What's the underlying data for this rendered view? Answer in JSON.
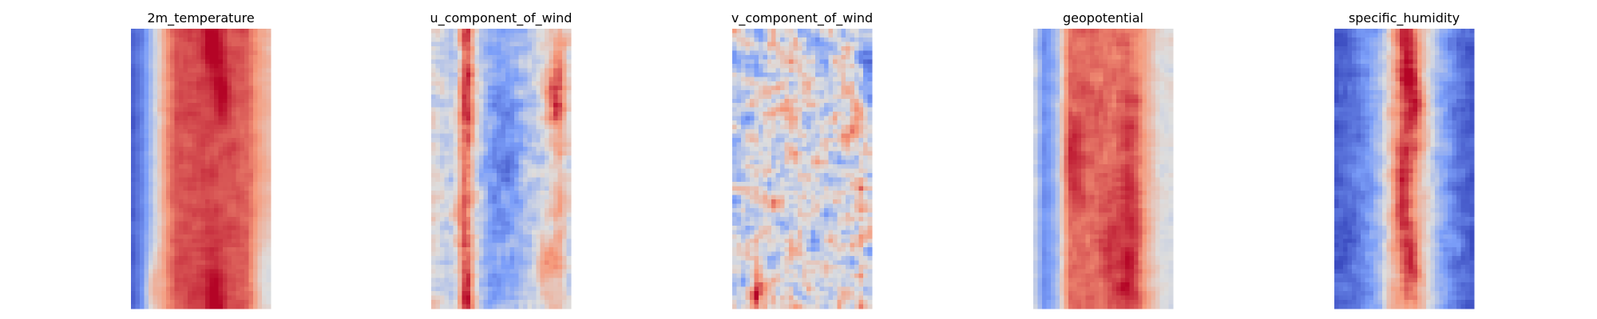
{
  "figure": {
    "background": "#ffffff",
    "colormap": "coolwarm"
  },
  "chart_data": [
    {
      "type": "heatmap",
      "title": "2m_temperature",
      "axes": "off",
      "profile": [
        -0.92,
        -0.65,
        -0.12,
        0.48,
        0.74,
        0.76,
        0.78,
        0.77,
        0.75,
        0.73,
        0.69,
        0.45,
        0.26
      ],
      "noise": 0.1,
      "blobs": [
        {
          "u": 0.58,
          "v": 0.02,
          "r": 0.05,
          "amp": 0.3
        },
        {
          "u": 0.65,
          "v": 0.22,
          "r": 0.04,
          "amp": 0.25
        },
        {
          "u": 0.6,
          "v": 0.98,
          "r": 0.05,
          "amp": 0.3
        },
        {
          "u": 0.15,
          "v": 0.93,
          "r": 0.04,
          "amp": 0.5
        },
        {
          "u": 0.96,
          "v": 0.88,
          "r": 0.05,
          "amp": -0.4
        }
      ]
    },
    {
      "type": "heatmap",
      "title": "u_component_of_wind",
      "axes": "off",
      "profile": [
        0.0,
        -0.12,
        -0.28,
        0.35,
        -0.2,
        -0.38,
        -0.42,
        -0.36,
        -0.22,
        -0.18,
        -0.05,
        0.3,
        -0.05
      ],
      "noise": 0.3,
      "blobs": [
        {
          "u": 0.25,
          "v": 0.3,
          "r": 0.06,
          "amp": 0.55
        },
        {
          "u": 0.22,
          "v": 0.65,
          "r": 0.07,
          "amp": 0.45
        },
        {
          "u": 0.26,
          "v": 0.03,
          "r": 0.05,
          "amp": 0.6
        },
        {
          "u": 0.25,
          "v": 0.97,
          "r": 0.05,
          "amp": 0.7
        },
        {
          "u": 0.88,
          "v": 0.22,
          "r": 0.06,
          "amp": 0.55
        },
        {
          "u": 0.82,
          "v": 0.85,
          "r": 0.05,
          "amp": 0.5
        },
        {
          "u": 0.55,
          "v": 0.42,
          "r": 0.08,
          "amp": -0.35
        }
      ]
    },
    {
      "type": "heatmap",
      "title": "v_component_of_wind",
      "axes": "off",
      "profile": [
        -0.25,
        -0.12,
        -0.05,
        -0.02,
        0.0,
        -0.02,
        0.0,
        -0.05,
        -0.02,
        0.0,
        0.05,
        0.1,
        -0.25
      ],
      "noise": 0.62,
      "blobs": [
        {
          "u": 0.18,
          "v": 0.97,
          "r": 0.04,
          "amp": 0.8
        },
        {
          "u": 0.95,
          "v": 0.1,
          "r": 0.05,
          "amp": -0.6
        },
        {
          "u": 0.97,
          "v": 0.7,
          "r": 0.05,
          "amp": 0.4
        }
      ]
    },
    {
      "type": "heatmap",
      "title": "geopotential",
      "axes": "off",
      "profile": [
        0.0,
        -0.62,
        -0.3,
        0.62,
        0.66,
        0.66,
        0.65,
        0.64,
        0.63,
        0.55,
        0.3,
        0.02,
        0.0
      ],
      "noise": 0.14,
      "blobs": [
        {
          "u": 0.28,
          "v": 0.45,
          "r": 0.06,
          "amp": 0.3
        },
        {
          "u": 0.7,
          "v": 0.3,
          "r": 0.05,
          "amp": 0.2
        },
        {
          "u": 0.7,
          "v": 0.58,
          "r": 0.05,
          "amp": 0.25
        },
        {
          "u": 0.68,
          "v": 0.88,
          "r": 0.07,
          "amp": 0.3
        },
        {
          "u": 0.55,
          "v": 0.75,
          "r": 0.06,
          "amp": 0.15
        }
      ]
    },
    {
      "type": "heatmap",
      "title": "specific_humidity",
      "axes": "off",
      "profile": [
        -0.92,
        -0.85,
        -0.7,
        -0.52,
        -0.25,
        0.28,
        0.62,
        0.42,
        0.05,
        -0.35,
        -0.58,
        -0.8,
        -0.92
      ],
      "noise": 0.22,
      "blobs": [
        {
          "u": 0.52,
          "v": 0.08,
          "r": 0.05,
          "amp": 0.4
        },
        {
          "u": 0.58,
          "v": 0.27,
          "r": 0.06,
          "amp": 0.45
        },
        {
          "u": 0.48,
          "v": 0.58,
          "r": 0.05,
          "amp": 0.35
        },
        {
          "u": 0.55,
          "v": 0.82,
          "r": 0.05,
          "amp": 0.35
        }
      ]
    }
  ]
}
